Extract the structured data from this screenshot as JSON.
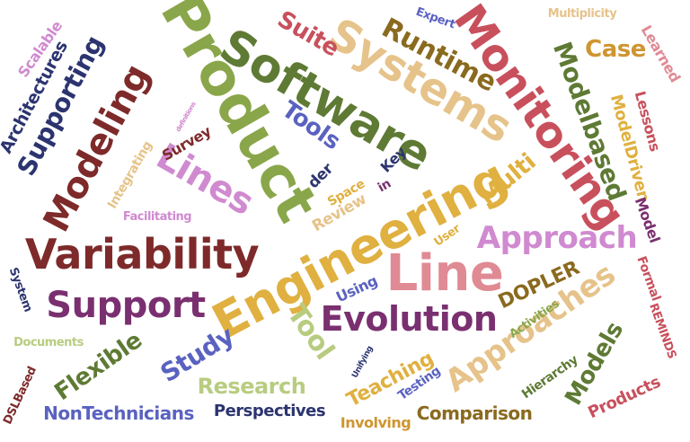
{
  "palette": {
    "olive": "#8aa64a",
    "dark_green": "#5e7a34",
    "maroon": "#7e2a2a",
    "crimson": "#c8505c",
    "rose": "#e08a94",
    "tan": "#e6c38a",
    "gold": "#e0b040",
    "brown": "#8a6a1e",
    "purple": "#7a3070",
    "violet": "#d08ad0",
    "navy": "#2c3470",
    "blue": "#5a62c0",
    "light_green": "#b8cc80",
    "orange": "#cf9530"
  },
  "words": [
    {
      "id": "product",
      "text": "Product",
      "color": "#8aa64a"
    },
    {
      "id": "software",
      "text": "Software",
      "color": "#5e7a34"
    },
    {
      "id": "systems",
      "text": "Systems",
      "color": "#e6c38a"
    },
    {
      "id": "engineering",
      "text": "Engineering",
      "color": "#e0b040"
    },
    {
      "id": "monitoring",
      "text": "Monitoring",
      "color": "#c8505c"
    },
    {
      "id": "variability",
      "text": "Variability",
      "color": "#7e2a2a"
    },
    {
      "id": "line",
      "text": "Line",
      "color": "#e08a94"
    },
    {
      "id": "modeling",
      "text": "Modeling",
      "color": "#7e2a2a"
    },
    {
      "id": "lines",
      "text": "Lines",
      "color": "#d08ad0"
    },
    {
      "id": "support",
      "text": "Support",
      "color": "#7a3070"
    },
    {
      "id": "evolution",
      "text": "Evolution",
      "color": "#7a3070"
    },
    {
      "id": "approach",
      "text": "Approach",
      "color": "#d08ad0"
    },
    {
      "id": "approaches",
      "text": "Approaches",
      "color": "#e6c38a"
    },
    {
      "id": "runtime",
      "text": "Runtime",
      "color": "#8a6a1e"
    },
    {
      "id": "supporting",
      "text": "Supporting",
      "color": "#2c3470"
    },
    {
      "id": "modelbased",
      "text": "Modelbased",
      "color": "#5e7a34"
    },
    {
      "id": "tools",
      "text": "Tools",
      "color": "#5a62c0"
    },
    {
      "id": "suite",
      "text": "Suite",
      "color": "#c8505c"
    },
    {
      "id": "case",
      "text": "Case",
      "color": "#cf9530"
    },
    {
      "id": "tool",
      "text": "Tool",
      "color": "#b8cc80"
    },
    {
      "id": "study",
      "text": "Study",
      "color": "#5a62c0"
    },
    {
      "id": "flexible",
      "text": "Flexible",
      "color": "#5e7a34"
    },
    {
      "id": "research",
      "text": "Research",
      "color": "#b8cc80"
    },
    {
      "id": "teaching",
      "text": "Teaching",
      "color": "#e0b040"
    },
    {
      "id": "models",
      "text": "Models",
      "color": "#5e7a34"
    },
    {
      "id": "comparison",
      "text": "Comparison",
      "color": "#8a6a1e"
    },
    {
      "id": "products",
      "text": "Products",
      "color": "#c8505c"
    },
    {
      "id": "nontechnicians",
      "text": "NonTechnicians",
      "color": "#5a62c0"
    },
    {
      "id": "perspectives",
      "text": "Perspectives",
      "color": "#2c3470"
    },
    {
      "id": "dopler",
      "text": "DOPLER",
      "color": "#8a6a1e"
    },
    {
      "id": "multi",
      "text": "Multi",
      "color": "#e0b040"
    },
    {
      "id": "modeldriven",
      "text": "ModelDriven",
      "color": "#e0b040"
    },
    {
      "id": "lessons",
      "text": "Lessons",
      "color": "#c8505c"
    },
    {
      "id": "learned",
      "text": "Learned",
      "color": "#e08a94"
    },
    {
      "id": "model",
      "text": "Model",
      "color": "#7a3070"
    },
    {
      "id": "formal",
      "text": "Formal",
      "color": "#c8505c"
    },
    {
      "id": "reminds",
      "text": "REMINDS",
      "color": "#c8505c"
    },
    {
      "id": "hierarchy",
      "text": "Hierarchy",
      "color": "#5e7a34"
    },
    {
      "id": "activities",
      "text": "Activities",
      "color": "#8aa64a"
    },
    {
      "id": "architectures",
      "text": "Architectures",
      "color": "#2c3470"
    },
    {
      "id": "scalable",
      "text": "Scalable",
      "color": "#d08ad0"
    },
    {
      "id": "integrating",
      "text": "Integrating",
      "color": "#e6c38a"
    },
    {
      "id": "survey",
      "text": "Survey",
      "color": "#7e2a2a"
    },
    {
      "id": "facilitating",
      "text": "Facilitating",
      "color": "#d08ad0"
    },
    {
      "id": "review",
      "text": "Review",
      "color": "#e6c38a"
    },
    {
      "id": "space",
      "text": "Space",
      "color": "#e0b040"
    },
    {
      "id": "der",
      "text": "der",
      "color": "#2c3470"
    },
    {
      "id": "in",
      "text": "in",
      "color": "#7a3070"
    },
    {
      "id": "key",
      "text": "Key",
      "color": "#2c3470"
    },
    {
      "id": "using",
      "text": "Using",
      "color": "#5a62c0"
    },
    {
      "id": "user",
      "text": "User",
      "color": "#e0b040"
    },
    {
      "id": "expert",
      "text": "Expert",
      "color": "#5a62c0"
    },
    {
      "id": "multiplicity",
      "text": "Multiplicity",
      "color": "#e6c38a"
    },
    {
      "id": "system",
      "text": "System",
      "color": "#2c3470"
    },
    {
      "id": "documents",
      "text": "Documents",
      "color": "#b8cc80"
    },
    {
      "id": "dslbased",
      "text": "DSLBased",
      "color": "#7e2a2a"
    },
    {
      "id": "testing",
      "text": "Testing",
      "color": "#5a62c0"
    },
    {
      "id": "involving",
      "text": "Involving",
      "color": "#cf9530"
    },
    {
      "id": "unifying",
      "text": "Unifying",
      "color": "#2c3470"
    },
    {
      "id": "definitions",
      "text": "definitions",
      "color": "#d08ad0"
    }
  ]
}
